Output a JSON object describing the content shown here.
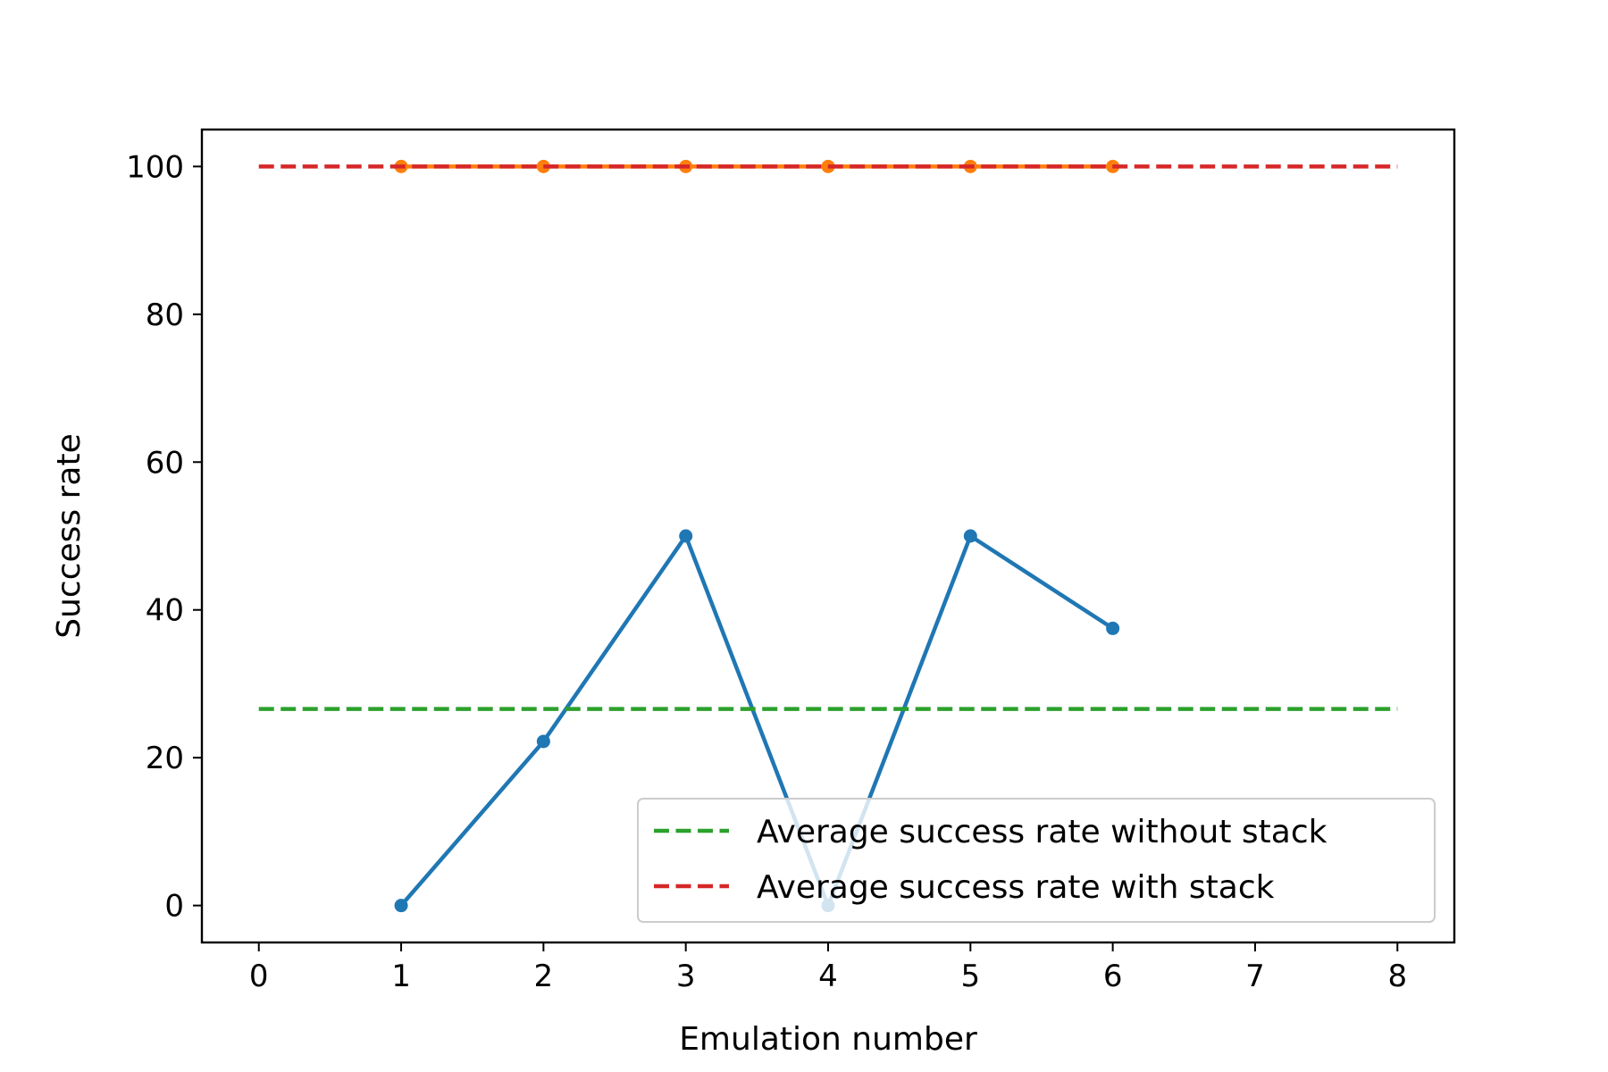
{
  "chart_data": {
    "type": "line",
    "title": "",
    "xlabel": "Emulation number",
    "ylabel": "Success rate",
    "xlim": [
      -0.4,
      8.4
    ],
    "ylim": [
      -5,
      105
    ],
    "xticks": [
      0,
      1,
      2,
      3,
      4,
      5,
      6,
      7,
      8
    ],
    "yticks": [
      0,
      20,
      40,
      60,
      80,
      100
    ],
    "grid": false,
    "legend_position": "lower-right",
    "series": [
      {
        "kind": "line-markers",
        "color": "#1f77b4",
        "x": [
          1,
          2,
          3,
          4,
          5,
          6
        ],
        "y": [
          0,
          22.2,
          50,
          0,
          50,
          37.5
        ]
      },
      {
        "kind": "line-markers",
        "color": "#ff7f0e",
        "x": [
          1,
          2,
          3,
          4,
          5,
          6
        ],
        "y": [
          100,
          100,
          100,
          100,
          100,
          100
        ]
      },
      {
        "kind": "hline-dashed",
        "name": "Average success rate without stack",
        "color": "#2ca02c",
        "y": 26.6,
        "x": [
          0,
          8
        ]
      },
      {
        "kind": "hline-dashed",
        "name": "Average success rate with stack",
        "color": "#d62728",
        "y": 100,
        "x": [
          0,
          8
        ]
      }
    ],
    "legend": [
      {
        "label": "Average success rate without stack",
        "color": "#2ca02c"
      },
      {
        "label": "Average success rate with stack",
        "color": "#d62728"
      }
    ]
  }
}
